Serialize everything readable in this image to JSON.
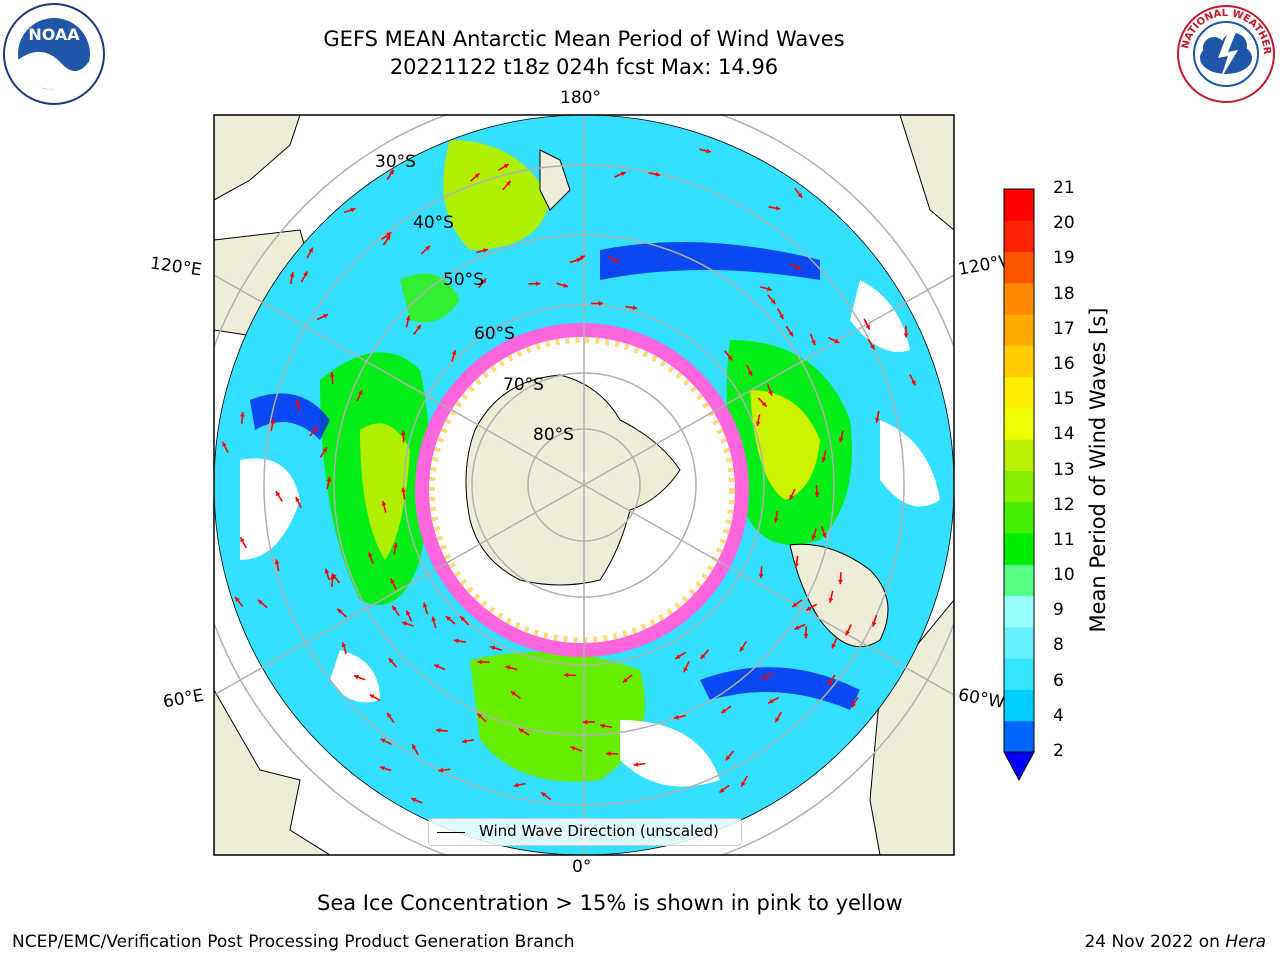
{
  "title": {
    "line1": "GEFS MEAN Antarctic Mean Period of Wind Waves",
    "line2": "20221122 t18z 024h fcst   Max: 14.96"
  },
  "map": {
    "projection": "south-polar-stereographic",
    "longitude_labels": {
      "top": "180°",
      "bottom": "0°",
      "upper_left": "120°E",
      "lower_left": "60°E",
      "upper_right": "120°W",
      "lower_right": "60°W"
    },
    "latitude_labels": [
      "30°S",
      "40°S",
      "50°S",
      "60°S",
      "70°S",
      "80°S"
    ],
    "legend": "Wind Wave Direction (unscaled)",
    "colors": {
      "land": "#efedd8",
      "ice_pink": "#ff66dd",
      "ice_yellow": "#ffd97a",
      "graticule": "#b0b0b0",
      "arrow": "#ff0000"
    }
  },
  "colorbar": {
    "label": "Mean Period of Wind Waves [s]",
    "ticks": [
      "2",
      "4",
      "6",
      "8",
      "9",
      "10",
      "11",
      "12",
      "13",
      "14",
      "15",
      "16",
      "17",
      "18",
      "19",
      "20",
      "21"
    ],
    "colors": [
      "#0066ff",
      "#00ccff",
      "#33e5ff",
      "#66f0ff",
      "#99ffff",
      "#55ff88",
      "#00ee00",
      "#44ee00",
      "#88ee00",
      "#bbf000",
      "#eeff00",
      "#ffee00",
      "#ffcc00",
      "#ffaa00",
      "#ff8800",
      "#ff5500",
      "#ff2200",
      "#ff0000"
    ],
    "underflow_color": "#0000ff"
  },
  "caption": "Sea Ice Concentration > 15% is shown in pink to yellow",
  "footer": {
    "left": "NCEP/EMC/Verification Post Processing Product Generation Branch",
    "right_date": "24 Nov 2022 on ",
    "right_host": "Hera"
  },
  "logos": {
    "noaa_text": "NOAA",
    "nws_text": "NATIONAL WEATHER SERVICE"
  }
}
